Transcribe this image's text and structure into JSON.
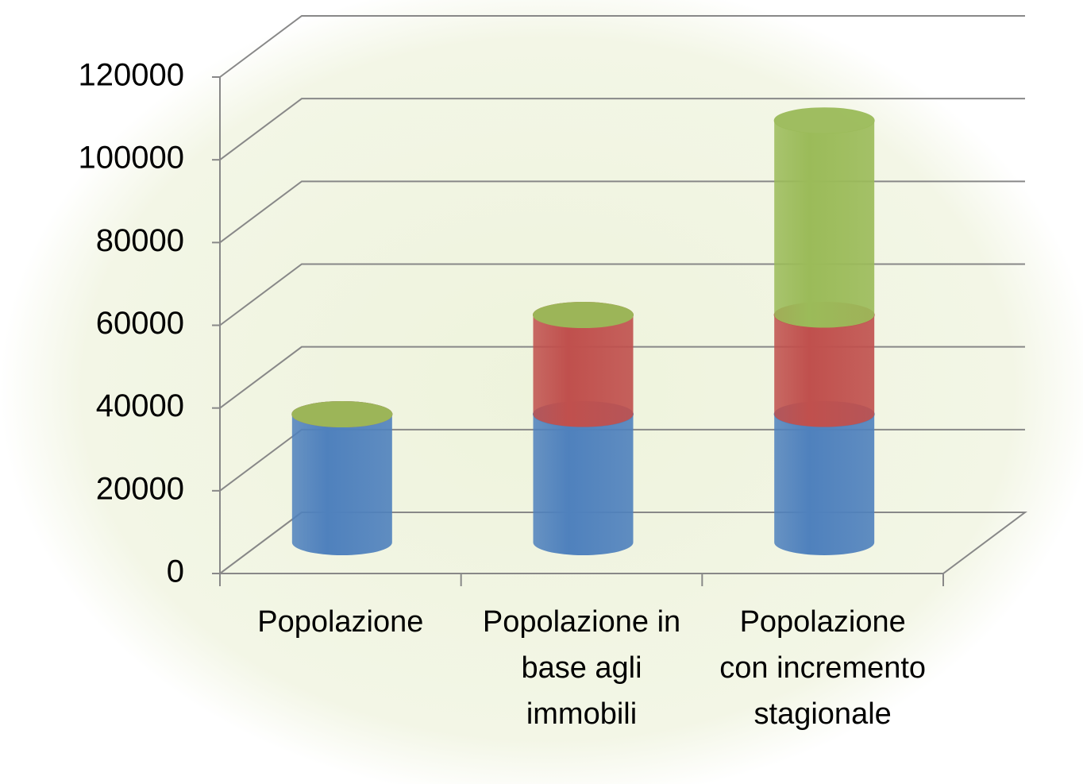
{
  "chart_data": {
    "type": "bar3d-stacked-cylinder",
    "categories": [
      "Popolazione",
      "Popolazione in base agli immobili",
      "Popolazione con incremento stagionale"
    ],
    "series": [
      {
        "color": "#4f81bd",
        "values": [
          31000,
          31000,
          31000
        ]
      },
      {
        "color": "#c0504d",
        "values": [
          0,
          24000,
          24000
        ]
      },
      {
        "color": "#9bbb59",
        "values": [
          0,
          0,
          47000
        ]
      }
    ],
    "ylim": [
      0,
      120000
    ],
    "yticks": [
      0,
      20000,
      40000,
      60000,
      80000,
      100000,
      120000
    ],
    "grid": true
  }
}
